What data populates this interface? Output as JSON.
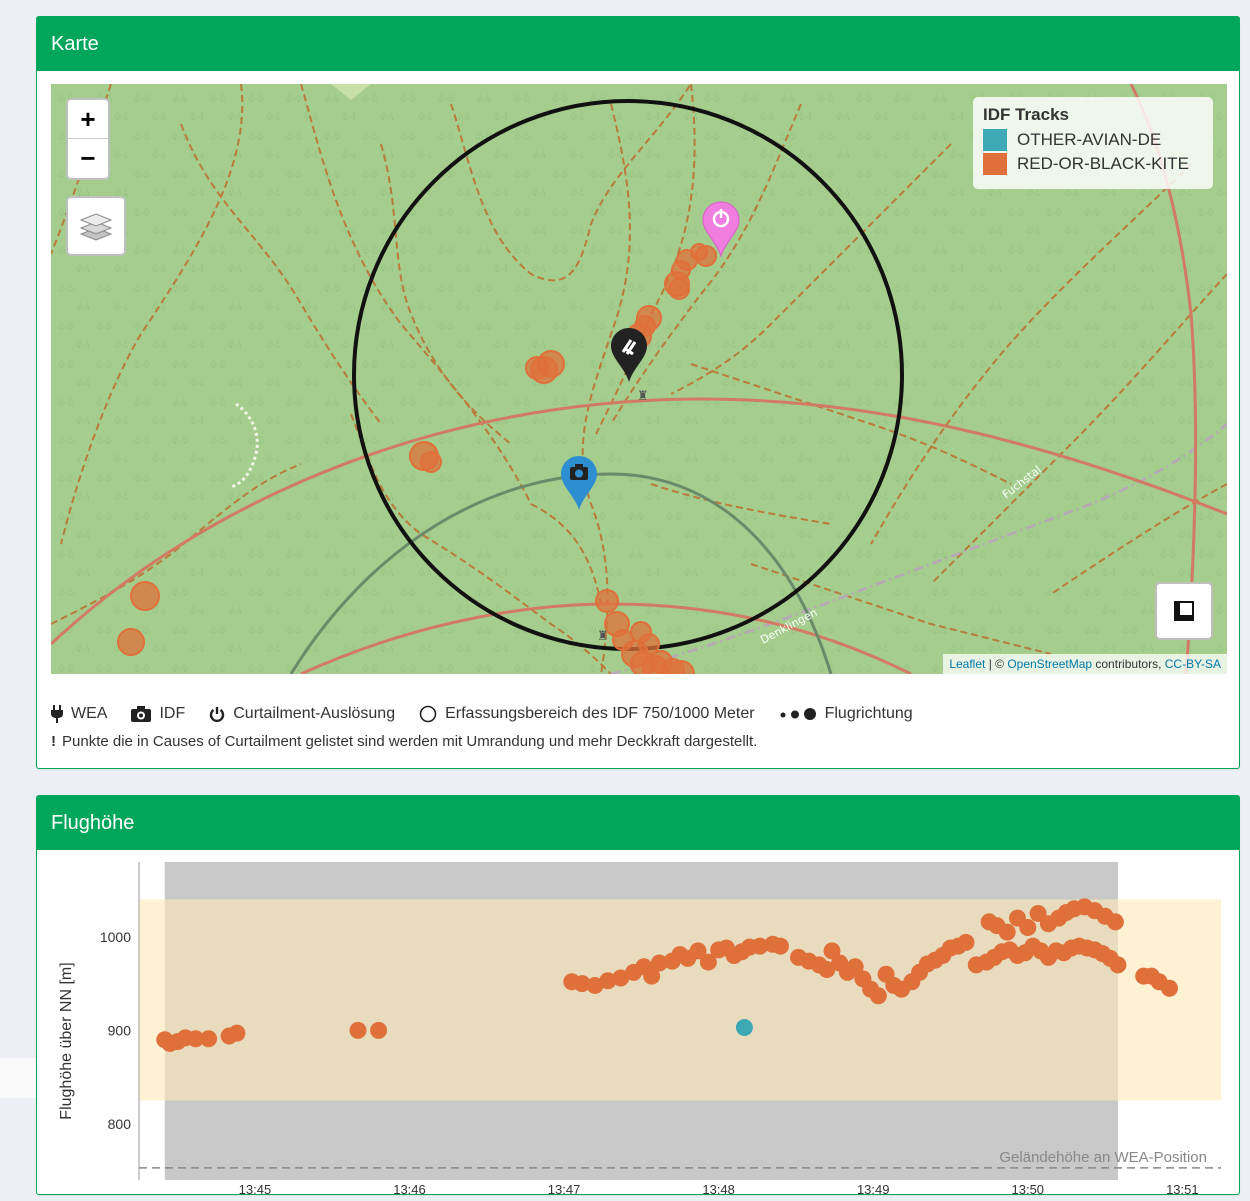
{
  "map_panel": {
    "title": "Karte",
    "zoom_in": "+",
    "zoom_out": "−",
    "legend_title": "IDF Tracks",
    "legend_items": [
      {
        "label": "OTHER-AVIAN-DE",
        "color": "#3ea8b4"
      },
      {
        "label": "RED-OR-BLACK-KITE",
        "color": "#e0703a"
      }
    ],
    "attribution": {
      "leaflet": "Leaflet",
      "separator": " | © ",
      "osm": "OpenStreetMap",
      "contributors": " contributors, ",
      "license": "CC-BY-SA"
    },
    "street_labels": [
      "Fuchstal",
      "Denklingen"
    ],
    "colors": {
      "map_bg": "#a4cd8e",
      "track": "#e0703a",
      "marker_idf": "#2e8fd0",
      "marker_curtail": "#f07ee0",
      "marker_wea": "#222222"
    }
  },
  "legend_bar": {
    "wea": "WEA",
    "idf": "IDF",
    "curtailment": "Curtailment-Auslösung",
    "range": "Erfassungsbereich des IDF 750/1000 Meter",
    "direction": "Flugrichtung",
    "note_mark": "!",
    "note": "Punkte die in Causes of Curtailment gelistet sind werden mit Umrandung und mehr Deckkraft dargestellt."
  },
  "chart_panel": {
    "title": "Flughöhe"
  },
  "chart_data": {
    "type": "scatter",
    "ylabel": "Flughöhe über NN [m]",
    "xlabel": "",
    "y_ticks": [
      800,
      900,
      1000
    ],
    "x_ticks": [
      "13:45",
      "13:46",
      "13:47",
      "13:48",
      "13:49",
      "13:50",
      "13:51"
    ],
    "ylim": [
      740,
      1080
    ],
    "xlim_minutes": [
      "13:44:15",
      "13:51:15"
    ],
    "terrain_label": "Geländehöhe an WEA-Position",
    "terrain_height": 753,
    "rotor_band": [
      825,
      1040
    ],
    "active_window": [
      "13:44:25",
      "13:50:35"
    ],
    "series": [
      {
        "name": "RED-OR-BLACK-KITE",
        "color": "#e0703a",
        "points": [
          [
            "13:44:25",
            890
          ],
          [
            "13:44:27",
            886
          ],
          [
            "13:44:30",
            888
          ],
          [
            "13:44:33",
            892
          ],
          [
            "13:44:37",
            891
          ],
          [
            "13:44:42",
            891
          ],
          [
            "13:44:50",
            894
          ],
          [
            "13:44:53",
            897
          ],
          [
            "13:45:40",
            900
          ],
          [
            "13:45:48",
            900
          ],
          [
            "13:47:03",
            952
          ],
          [
            "13:47:07",
            950
          ],
          [
            "13:47:12",
            948
          ],
          [
            "13:47:17",
            953
          ],
          [
            "13:47:22",
            956
          ],
          [
            "13:47:27",
            962
          ],
          [
            "13:47:31",
            968
          ],
          [
            "13:47:34",
            958
          ],
          [
            "13:47:37",
            972
          ],
          [
            "13:47:42",
            974
          ],
          [
            "13:47:45",
            981
          ],
          [
            "13:47:48",
            977
          ],
          [
            "13:47:52",
            985
          ],
          [
            "13:47:56",
            973
          ],
          [
            "13:48:00",
            986
          ],
          [
            "13:48:03",
            988
          ],
          [
            "13:48:06",
            980
          ],
          [
            "13:48:09",
            984
          ],
          [
            "13:48:12",
            989
          ],
          [
            "13:48:16",
            990
          ],
          [
            "13:48:21",
            992
          ],
          [
            "13:48:24",
            990
          ],
          [
            "13:48:31",
            978
          ],
          [
            "13:48:35",
            974
          ],
          [
            "13:48:39",
            970
          ],
          [
            "13:48:42",
            965
          ],
          [
            "13:48:44",
            985
          ],
          [
            "13:48:47",
            972
          ],
          [
            "13:48:50",
            962
          ],
          [
            "13:48:53",
            968
          ],
          [
            "13:48:56",
            955
          ],
          [
            "13:48:59",
            944
          ],
          [
            "13:49:02",
            937
          ],
          [
            "13:49:05",
            960
          ],
          [
            "13:49:08",
            948
          ],
          [
            "13:49:11",
            944
          ],
          [
            "13:49:15",
            952
          ],
          [
            "13:49:18",
            962
          ],
          [
            "13:49:21",
            971
          ],
          [
            "13:49:24",
            975
          ],
          [
            "13:49:27",
            980
          ],
          [
            "13:49:30",
            988
          ],
          [
            "13:49:33",
            990
          ],
          [
            "13:49:36",
            994
          ],
          [
            "13:49:40",
            970
          ],
          [
            "13:49:44",
            973
          ],
          [
            "13:49:47",
            978
          ],
          [
            "13:49:50",
            984
          ],
          [
            "13:49:53",
            986
          ],
          [
            "13:49:56",
            980
          ],
          [
            "13:49:59",
            983
          ],
          [
            "13:50:02",
            990
          ],
          [
            "13:50:05",
            985
          ],
          [
            "13:50:08",
            978
          ],
          [
            "13:50:11",
            985
          ],
          [
            "13:50:14",
            983
          ],
          [
            "13:50:17",
            988
          ],
          [
            "13:50:20",
            990
          ],
          [
            "13:50:23",
            988
          ],
          [
            "13:50:26",
            986
          ],
          [
            "13:50:29",
            982
          ],
          [
            "13:50:32",
            977
          ],
          [
            "13:50:35",
            970
          ],
          [
            "13:49:45",
            1016
          ],
          [
            "13:49:48",
            1012
          ],
          [
            "13:49:52",
            1005
          ],
          [
            "13:49:56",
            1020
          ],
          [
            "13:50:00",
            1010
          ],
          [
            "13:50:04",
            1025
          ],
          [
            "13:50:08",
            1014
          ],
          [
            "13:50:12",
            1020
          ],
          [
            "13:50:15",
            1026
          ],
          [
            "13:50:18",
            1030
          ],
          [
            "13:50:22",
            1032
          ],
          [
            "13:50:26",
            1028
          ],
          [
            "13:50:30",
            1022
          ],
          [
            "13:50:34",
            1016
          ],
          [
            "13:50:45",
            958
          ],
          [
            "13:50:48",
            958
          ],
          [
            "13:50:51",
            952
          ],
          [
            "13:50:55",
            945
          ]
        ]
      },
      {
        "name": "OTHER-AVIAN-DE",
        "color": "#3ea8b4",
        "points": [
          [
            "13:48:10",
            903
          ]
        ]
      }
    ],
    "colors": {
      "grey_band": "#c8c8c8",
      "rotor_band": "#fde8b8",
      "orange": "#e0703a",
      "teal": "#3ea8b4"
    }
  }
}
